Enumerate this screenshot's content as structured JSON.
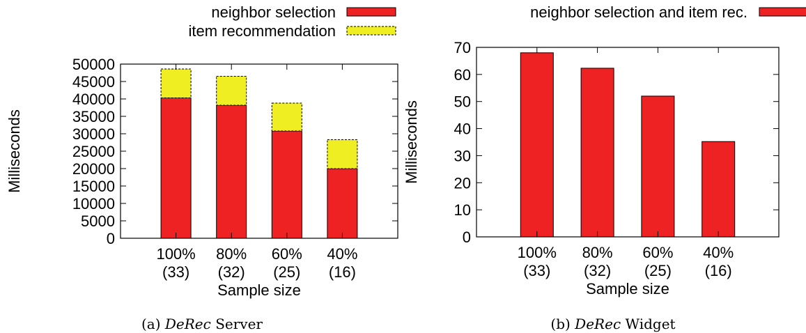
{
  "chart_data": [
    {
      "type": "bar",
      "stacked": true,
      "caption_prefix": "(a) ",
      "caption_em": "DeRec",
      "caption_suffix": " Server",
      "xlabel": "Sample size",
      "ylabel": "Milliseconds",
      "ylim": [
        0,
        50000
      ],
      "yticks": [
        "0",
        "5000",
        "10000",
        "15000",
        "20000",
        "25000",
        "30000",
        "35000",
        "40000",
        "45000",
        "50000"
      ],
      "categories": [
        {
          "line1": "100%",
          "line2": "(33)"
        },
        {
          "line1": "80%",
          "line2": "(32)"
        },
        {
          "line1": "60%",
          "line2": "(25)"
        },
        {
          "line1": "40%",
          "line2": "(16)"
        }
      ],
      "series": [
        {
          "name": "neighbor selection",
          "color": "#ee2222",
          "border": "solid",
          "values": [
            40300,
            38200,
            30800,
            20000
          ]
        },
        {
          "name": "item recommendation",
          "color": "#eeee22",
          "border": "dashed",
          "values": [
            8300,
            8300,
            8000,
            8300
          ]
        }
      ],
      "legend_position": "top-right (outside)",
      "grid": false
    },
    {
      "type": "bar",
      "stacked": false,
      "caption_prefix": "(b) ",
      "caption_em": "DeRec",
      "caption_suffix": " Widget",
      "xlabel": "Sample size",
      "ylabel": "Milliseconds",
      "ylim": [
        0,
        70
      ],
      "yticks": [
        "0",
        "10",
        "20",
        "30",
        "40",
        "50",
        "60",
        "70"
      ],
      "categories": [
        {
          "line1": "100%",
          "line2": "(33)"
        },
        {
          "line1": "80%",
          "line2": "(32)"
        },
        {
          "line1": "60%",
          "line2": "(25)"
        },
        {
          "line1": "40%",
          "line2": "(16)"
        }
      ],
      "series": [
        {
          "name": "neighbor selection and item rec.",
          "color": "#ee2222",
          "border": "solid",
          "values": [
            68,
            62.3,
            52,
            35.2
          ]
        }
      ],
      "legend_position": "top-right (outside)",
      "grid": false
    }
  ]
}
